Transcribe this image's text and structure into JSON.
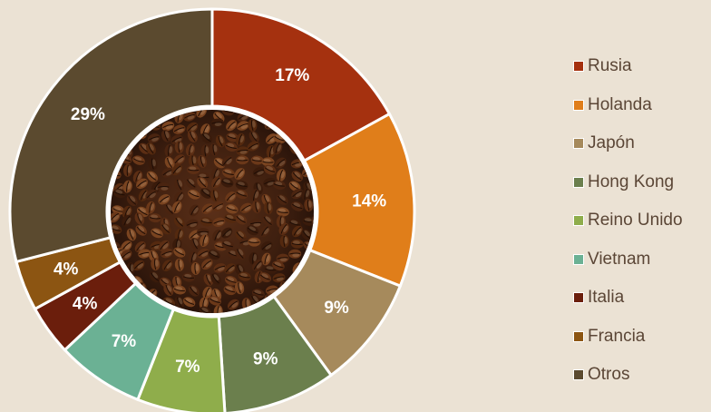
{
  "chart_data": {
    "type": "pie",
    "categories": [
      "Rusia",
      "Holanda",
      "Japón",
      "Hong Kong",
      "Reino Unido",
      "Vietnam",
      "Italia",
      "Francia",
      "Otros"
    ],
    "values": [
      17,
      14,
      9,
      9,
      7,
      7,
      4,
      4,
      29
    ],
    "labels": [
      "17%",
      "14%",
      "9%",
      "9%",
      "7%",
      "7%",
      "4%",
      "4%",
      "29%"
    ],
    "colors": [
      "#a5310f",
      "#e07e1a",
      "#a68a5c",
      "#6b7f4d",
      "#8fad4b",
      "#6bb194",
      "#6b1e0c",
      "#8c5512",
      "#5b4a2f"
    ],
    "legend_position": "right",
    "center_image": "coffee-beans"
  }
}
